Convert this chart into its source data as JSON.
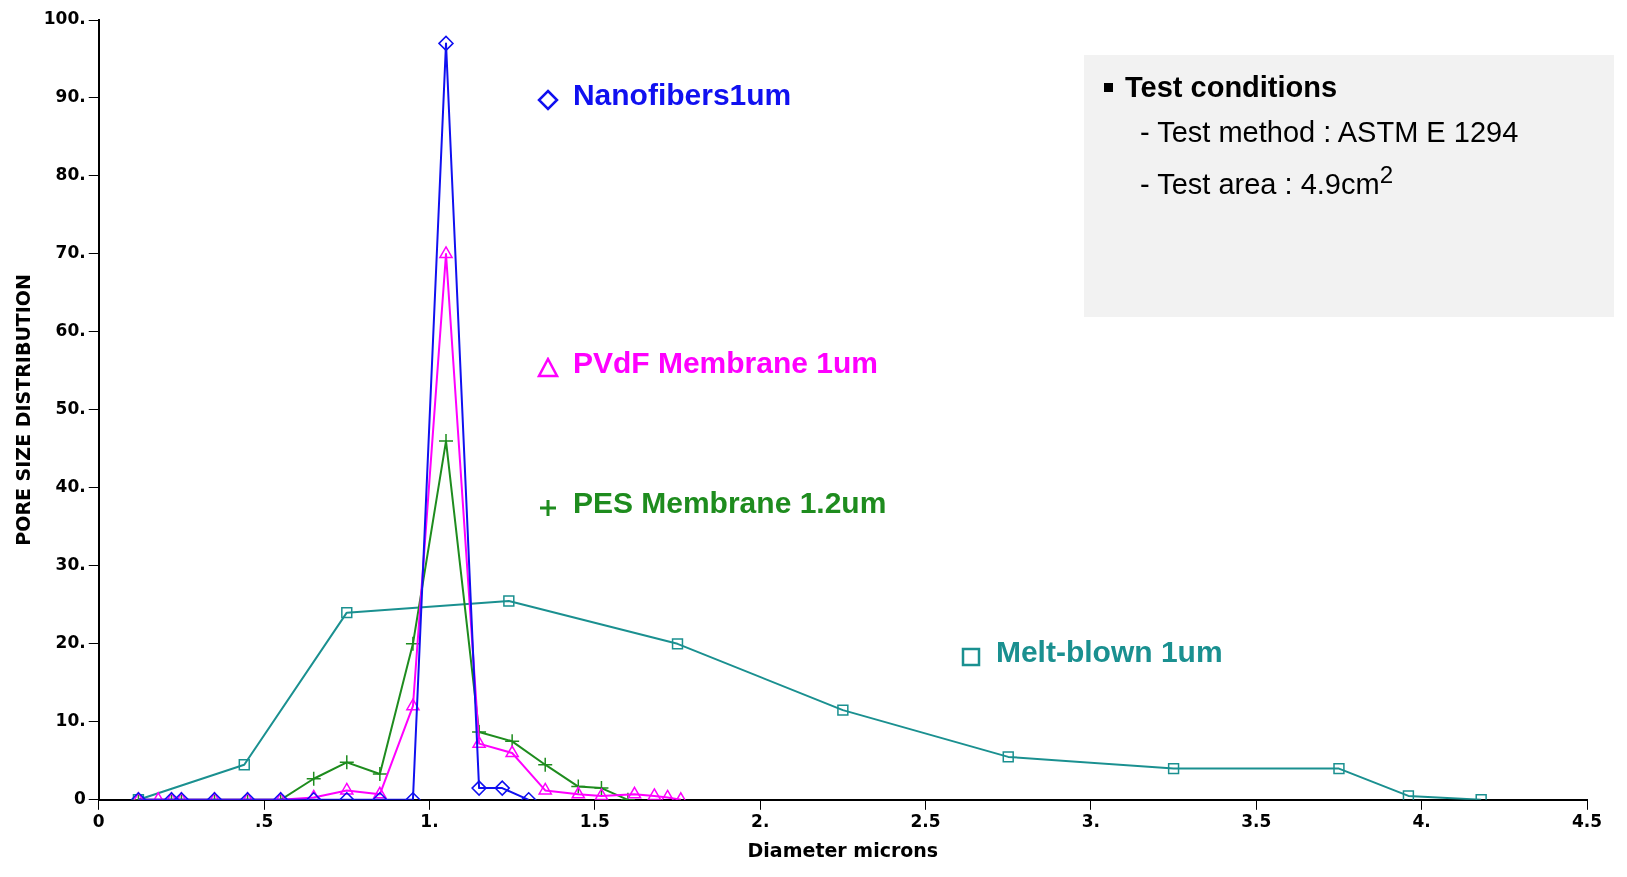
{
  "chart_data": {
    "type": "line",
    "xlabel": "Diameter microns",
    "ylabel": "PORE SIZE DISTRIBUTION",
    "xlim": [
      0,
      4.5
    ],
    "xticks": [
      0,
      {
        "value": 0.5,
        "label": ".5"
      },
      {
        "value": 1,
        "label": "1."
      },
      1.5,
      {
        "value": 2,
        "label": "2."
      },
      2.5,
      {
        "value": 3,
        "label": "3."
      },
      3.5,
      {
        "value": 4,
        "label": "4."
      },
      4.5
    ],
    "ylim": [
      0,
      100
    ],
    "yticks": [
      0,
      {
        "value": 10,
        "label": "10."
      },
      {
        "value": 20,
        "label": "20."
      },
      {
        "value": 30,
        "label": "30."
      },
      {
        "value": 40,
        "label": "40."
      },
      {
        "value": 50,
        "label": "50."
      },
      {
        "value": 60,
        "label": "60."
      },
      {
        "value": 70,
        "label": "70."
      },
      {
        "value": 80,
        "label": "80."
      },
      {
        "value": 90,
        "label": "90."
      },
      {
        "value": 100,
        "label": "100."
      }
    ],
    "series": [
      {
        "name": "Nanofibers1um",
        "color": "#1010f0",
        "marker": "diamond",
        "x": [
          0.12,
          0.22,
          0.25,
          0.35,
          0.45,
          0.55,
          0.65,
          0.75,
          0.85,
          0.95,
          1.05,
          1.15,
          1.22,
          1.3
        ],
        "values": [
          0,
          0,
          0,
          0,
          0,
          0,
          0,
          0,
          0,
          0,
          97,
          1.5,
          1.5,
          0
        ]
      },
      {
        "name": "PVdF Membrane 1um",
        "color": "#ff00ff",
        "marker": "triangle",
        "x": [
          0.12,
          0.18,
          0.22,
          0.25,
          0.35,
          0.45,
          0.55,
          0.65,
          0.75,
          0.85,
          0.95,
          1.05,
          1.15,
          1.25,
          1.35,
          1.45,
          1.52,
          1.62,
          1.68,
          1.72,
          1.76
        ],
        "values": [
          0,
          0,
          0,
          0,
          0,
          0,
          0,
          0.3,
          1.2,
          0.7,
          12,
          70,
          7.2,
          6,
          1.2,
          0.7,
          0.5,
          0.7,
          0.5,
          0.3,
          0
        ]
      },
      {
        "name": "PES Membrane 1.2um",
        "color": "#1e8c1e",
        "marker": "cross",
        "x": [
          0.12,
          0.22,
          0.25,
          0.35,
          0.45,
          0.55,
          0.65,
          0.75,
          0.85,
          0.95,
          1.05,
          1.15,
          1.25,
          1.35,
          1.45,
          1.52,
          1.6
        ],
        "values": [
          0,
          0,
          0,
          0,
          0,
          0,
          2.7,
          4.8,
          3.3,
          20,
          46,
          8.7,
          7.5,
          4.5,
          1.7,
          1.5,
          0
        ]
      },
      {
        "name": "Melt-blown 1um",
        "color": "#1a9090",
        "marker": "square",
        "x": [
          0.12,
          0.44,
          0.75,
          1.24,
          1.75,
          2.25,
          2.75,
          3.25,
          3.75,
          3.96,
          4.18
        ],
        "values": [
          0,
          4.5,
          24,
          25.5,
          20,
          11.5,
          5.5,
          4,
          4,
          0.5,
          0
        ]
      }
    ],
    "legend": "right",
    "annotations": [
      "Test conditions",
      "- Test method : ASTM E 1294",
      "- Test area : 4.9cm$^{2}$"
    ]
  }
}
